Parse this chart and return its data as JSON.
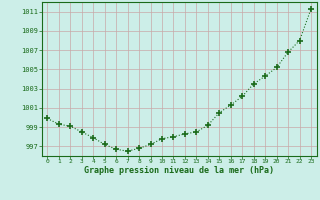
{
  "x": [
    0,
    1,
    2,
    3,
    4,
    5,
    6,
    7,
    8,
    9,
    10,
    11,
    12,
    13,
    14,
    15,
    16,
    17,
    18,
    19,
    20,
    21,
    22,
    23
  ],
  "y": [
    999.9,
    999.3,
    999.1,
    998.5,
    997.9,
    997.2,
    996.7,
    996.5,
    996.8,
    997.2,
    997.8,
    998.0,
    998.3,
    998.5,
    999.2,
    1000.5,
    1001.3,
    1002.2,
    1003.5,
    1004.3,
    1005.2,
    1006.8,
    1008.0,
    1011.3
  ],
  "line_color": "#1a6b1a",
  "bg_color": "#cceee8",
  "grid_color_h": "#c8a8a8",
  "grid_color_v": "#c8a8a8",
  "text_color": "#1a6b1a",
  "xlabel": "Graphe pression niveau de la mer (hPa)",
  "ylim_min": 996.0,
  "ylim_max": 1012.0,
  "yticks": [
    997,
    999,
    1001,
    1003,
    1005,
    1007,
    1009,
    1011
  ],
  "xticks": [
    0,
    1,
    2,
    3,
    4,
    5,
    6,
    7,
    8,
    9,
    10,
    11,
    12,
    13,
    14,
    15,
    16,
    17,
    18,
    19,
    20,
    21,
    22,
    23
  ],
  "marker": "+",
  "markersize": 4,
  "linewidth": 0.8
}
